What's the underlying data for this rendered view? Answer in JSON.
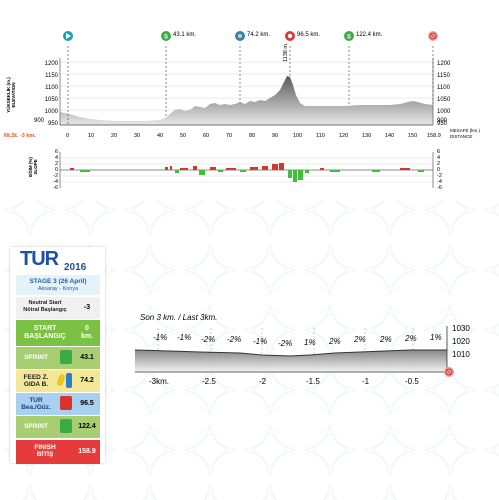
{
  "profile": {
    "markers": [
      {
        "label": "",
        "color": "#1aa0b8"
      },
      {
        "label": "43.1 km.",
        "color": "#3daa48"
      },
      {
        "label": "74.2 km.",
        "color": "#2b7fd1"
      },
      {
        "label": "96.5 km.",
        "color": "#d93a3a"
      },
      {
        "label": "122.4 km.",
        "color": "#3daa48"
      },
      {
        "label": "",
        "color": "#e57a7a"
      }
    ],
    "elevation_ticks": [
      "1200",
      "1150",
      "1100",
      "1050",
      "1000",
      "950",
      "900"
    ],
    "elevation_axis_label": "YÜKSEKLİK (m.)\nELEVATION",
    "summit_label": "1138 m.",
    "distance_ticks": [
      "0",
      "10",
      "20",
      "30",
      "40",
      "50",
      "60",
      "70",
      "80",
      "90",
      "100",
      "110",
      "120",
      "130",
      "140",
      "150",
      "158.9"
    ],
    "neutral_label": "Nt.St. -3 km.",
    "distance_axis_label_1": "MESAFE (km.)",
    "distance_axis_label_2": "DISTANCE",
    "slope_ticks": [
      "6",
      "4",
      "2",
      "0",
      "-2",
      "-4",
      "-6"
    ],
    "slope_axis_label": "EĞİM (%)\nSLOPE"
  },
  "legend": {
    "logo_text": "TUR",
    "logo_year": "2016",
    "stage_title": "STAGE 3 (26 April)",
    "stage_route": "Aksaray - Konya",
    "rows": [
      {
        "label": "Neutral Start\nNötral Başlangıç",
        "value": "-3"
      },
      {
        "label": "START\nBAŞLANGIÇ",
        "value": "0\nkm."
      },
      {
        "label": "SPRINT",
        "value": "43.1"
      },
      {
        "label": "FEED Z.\nGIDA B.",
        "value": "74.2"
      },
      {
        "label": "TUR\nBea./Güz.",
        "value": "96.5"
      },
      {
        "label": "SPRINT",
        "value": "122.4"
      },
      {
        "label": "FINISH\nBİTİŞ",
        "value": "158.9"
      }
    ]
  },
  "last3km": {
    "title": "Son 3 km. / Last 3km.",
    "slopes": [
      "-1%",
      "-1%",
      "-2%",
      "-2%",
      "-1%",
      "-2%",
      "1%",
      "2%",
      "2%",
      "2%",
      "2%",
      "1%"
    ],
    "x_ticks": [
      "-3km.",
      "-2.5",
      "-2",
      "-1.5",
      "-1",
      "-0.5"
    ],
    "y_ticks": [
      "1030",
      "1020",
      "1010"
    ]
  },
  "colors": {
    "gradient_dark": "#8e8e8e",
    "gradient_light": "#e8e8e8",
    "slope_up": "#d9342b",
    "slope_down": "#3fbf3f",
    "neutral_label": "#e0521a"
  }
}
